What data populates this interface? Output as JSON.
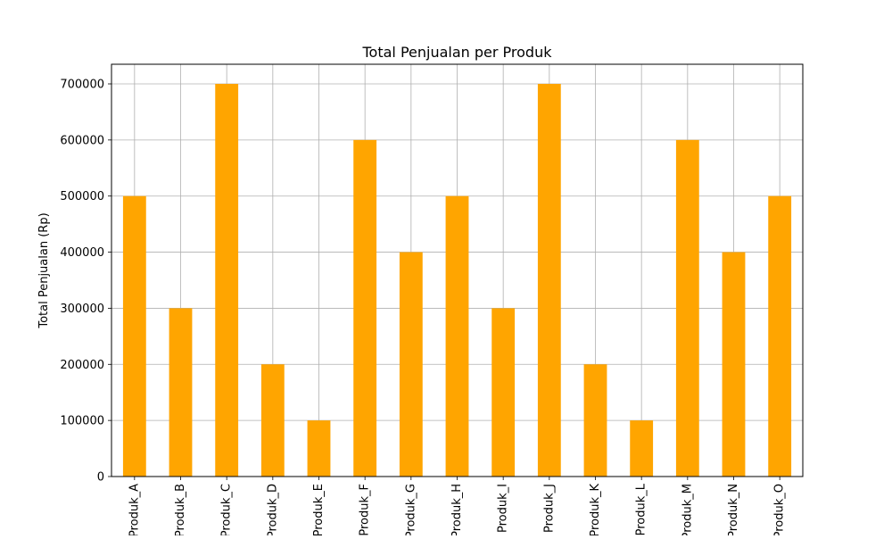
{
  "chart_data": {
    "type": "bar",
    "title": "Total Penjualan per Produk",
    "xlabel": "",
    "ylabel": "Total Penjualan (Rp)",
    "categories": [
      "Produk_A",
      "Produk_B",
      "Produk_C",
      "Produk_D",
      "Produk_E",
      "Produk_F",
      "Produk_G",
      "Produk_H",
      "Produk_I",
      "Produk_J",
      "Produk_K",
      "Produk_L",
      "Produk_M",
      "Produk_N",
      "Produk_O"
    ],
    "values": [
      500000,
      300000,
      700000,
      200000,
      100000,
      600000,
      400000,
      500000,
      300000,
      700000,
      200000,
      100000,
      600000,
      400000,
      500000
    ],
    "ylim": [
      0,
      735000
    ],
    "yticks": [
      0,
      100000,
      200000,
      300000,
      400000,
      500000,
      600000,
      700000
    ],
    "grid": true,
    "colors": {
      "bar": "#ffa500",
      "grid": "#b0b0b0",
      "axis": "#000000"
    }
  }
}
